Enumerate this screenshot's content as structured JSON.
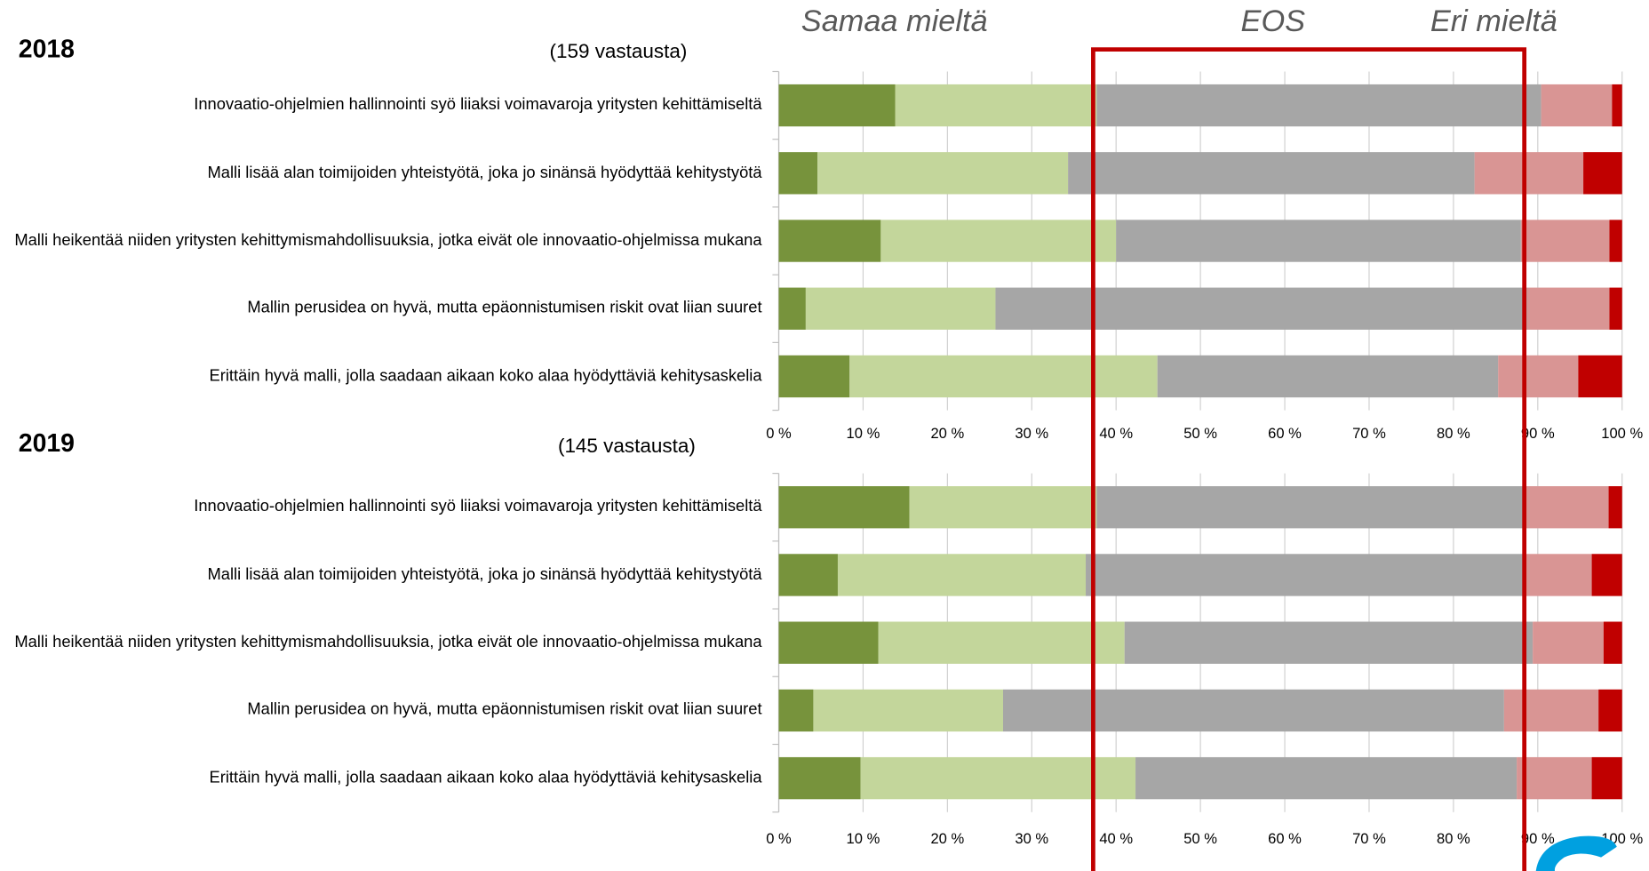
{
  "annotations": [
    "Samaa mieltä",
    "EOS",
    "Eri mieltä"
  ],
  "chart_data": [
    {
      "type": "bar",
      "orientation": "horizontal",
      "stacked": true,
      "title": "2018",
      "subtitle": "(159 vastausta)",
      "categories": [
        "Innovaatio-ohjelmien hallinnointi syö liiaksi voimavaroja yritysten kehittämiseltä",
        "Malli lisää alan toimijoiden yhteistyötä, joka jo sinänsä hyödyttää kehitystyötä",
        "Malli heikentää niiden yritysten kehittymismahdollisuuksia, jotka eivät ole innovaatio-ohjelmissa mukana",
        "Mallin perusidea on hyvä, mutta epäonnistumisen riskit ovat liian suuret",
        "Erittäin hyvä malli, jolla saadaan aikaan koko alaa hyödyttäviä kehitysaskelia"
      ],
      "series": [
        {
          "color": "#77933c",
          "values": [
            13.8,
            4.6,
            12.1,
            3.2,
            8.4
          ]
        },
        {
          "color": "#c3d69b",
          "values": [
            23.9,
            29.7,
            27.9,
            22.5,
            36.5
          ]
        },
        {
          "color": "#a6a6a6",
          "values": [
            52.7,
            48.2,
            48.0,
            63.0,
            40.4
          ]
        },
        {
          "color": "#d99594",
          "values": [
            8.4,
            12.9,
            10.5,
            9.8,
            9.5
          ]
        },
        {
          "color": "#c00000",
          "values": [
            1.2,
            4.6,
            1.5,
            1.5,
            5.2
          ]
        }
      ],
      "xlim": [
        0,
        100
      ],
      "xticks": [
        {
          "value": 0,
          "label": "0 %"
        },
        {
          "value": 10,
          "label": "10 %"
        },
        {
          "value": 20,
          "label": "20 %"
        },
        {
          "value": 30,
          "label": "30 %"
        },
        {
          "value": 40,
          "label": "40 %"
        },
        {
          "value": 50,
          "label": "50 %"
        },
        {
          "value": 60,
          "label": "60 %"
        },
        {
          "value": 70,
          "label": "70 %"
        },
        {
          "value": 80,
          "label": "80 %"
        },
        {
          "value": 90,
          "label": "90 %"
        },
        {
          "value": 100,
          "label": "100 %"
        }
      ],
      "grid": true
    },
    {
      "type": "bar",
      "orientation": "horizontal",
      "stacked": true,
      "title": "2019",
      "subtitle": "(145 vastausta)",
      "categories": [
        "Innovaatio-ohjelmien hallinnointi syö liiaksi voimavaroja yritysten kehittämiseltä",
        "Malli lisää alan toimijoiden yhteistyötä, joka jo sinänsä hyödyttää kehitystyötä",
        "Malli heikentää niiden yritysten kehittymismahdollisuuksia, jotka eivät ole innovaatio-ohjelmissa mukana",
        "Mallin perusidea on hyvä, mutta epäonnistumisen riskit ovat liian suuret",
        "Erittäin hyvä malli, jolla saadaan aikaan koko alaa hyödyttäviä kehitysaskelia"
      ],
      "series": [
        {
          "color": "#77933c",
          "values": [
            15.5,
            7.0,
            11.8,
            4.1,
            9.7
          ]
        },
        {
          "color": "#c3d69b",
          "values": [
            22.2,
            29.4,
            29.2,
            22.5,
            32.6
          ]
        },
        {
          "color": "#a6a6a6",
          "values": [
            50.7,
            52.0,
            48.4,
            59.4,
            45.2
          ]
        },
        {
          "color": "#d99594",
          "values": [
            10.0,
            8.0,
            8.4,
            11.2,
            8.9
          ]
        },
        {
          "color": "#c00000",
          "values": [
            1.6,
            3.6,
            2.2,
            2.8,
            3.6
          ]
        }
      ],
      "xlim": [
        0,
        100
      ],
      "xticks": [
        {
          "value": 0,
          "label": "0 %"
        },
        {
          "value": 10,
          "label": "10 %"
        },
        {
          "value": 20,
          "label": "20 %"
        },
        {
          "value": 30,
          "label": "30 %"
        },
        {
          "value": 40,
          "label": "40 %"
        },
        {
          "value": 50,
          "label": "50 %"
        },
        {
          "value": 60,
          "label": "60 %"
        },
        {
          "value": 70,
          "label": "70 %"
        },
        {
          "value": 80,
          "label": "80 %"
        },
        {
          "value": 90,
          "label": "90 %"
        },
        {
          "value": 100,
          "label": "100 %"
        }
      ],
      "grid": true
    }
  ]
}
